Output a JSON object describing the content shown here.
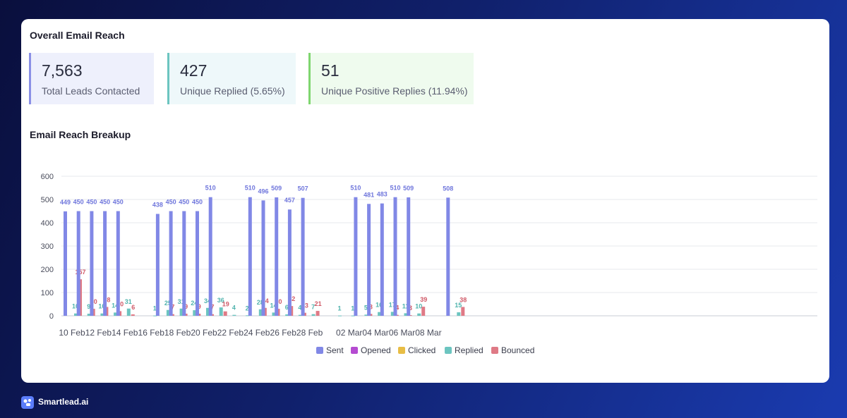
{
  "overview": {
    "title": "Overall Email Reach",
    "stats": [
      {
        "value": "7,563",
        "label": "Total Leads Contacted",
        "color": "#8a8fe6",
        "bg": "#eef0fc"
      },
      {
        "value": "427",
        "label": "Unique Replied (5.65%)",
        "color": "#6cc5c0",
        "bg": "#eef8fa"
      },
      {
        "value": "51",
        "label": "Unique Positive Replies (11.94%)",
        "color": "#7fd66f",
        "bg": "#effbee"
      }
    ]
  },
  "breakup": {
    "title": "Email Reach Breakup"
  },
  "chart_data": {
    "type": "bar",
    "ylim": [
      0,
      600
    ],
    "yticks": [
      0,
      100,
      200,
      300,
      400,
      500,
      600
    ],
    "grid": true,
    "legend_position": "bottom",
    "x_tick_labels": [
      "10 Feb",
      "12 Feb",
      "14 Feb",
      "16 Feb",
      "18 Feb",
      "20 Feb",
      "22 Feb",
      "24 Feb",
      "26 Feb",
      "28 Feb",
      "02 Mar",
      "04 Mar",
      "06 Mar",
      "08 Mar"
    ],
    "series": [
      {
        "name": "Sent",
        "color": "#8188e6"
      },
      {
        "name": "Opened",
        "color": "#b54bd1"
      },
      {
        "name": "Clicked",
        "color": "#e8bd45"
      },
      {
        "name": "Replied",
        "color": "#6cc5c0"
      },
      {
        "name": "Bounced",
        "color": "#df7a86"
      }
    ],
    "points": [
      {
        "date": "10 Feb",
        "sent": 449,
        "replied": 10,
        "bounced": 157
      },
      {
        "date": "11 Feb",
        "sent": 450,
        "replied": 9,
        "bounced": 30
      },
      {
        "date": "12 Feb",
        "sent": 450,
        "replied": 10,
        "bounced": 38
      },
      {
        "date": "13 Feb",
        "sent": 450,
        "replied": 14,
        "bounced": 20
      },
      {
        "date": "14 Feb",
        "sent": 450,
        "replied": 31,
        "bounced": 6
      },
      {
        "date": "16 Feb",
        "sent": 0,
        "replied": 1,
        "bounced": 0
      },
      {
        "date": "17 Feb",
        "sent": 438,
        "replied": 25,
        "bounced": 7
      },
      {
        "date": "18 Feb",
        "sent": 450,
        "replied": 31,
        "bounced": 9
      },
      {
        "date": "19 Feb",
        "sent": 450,
        "replied": 24,
        "bounced": 9
      },
      {
        "date": "20 Feb",
        "sent": 450,
        "replied": 34,
        "bounced": 7
      },
      {
        "date": "21 Feb",
        "sent": 510,
        "replied": 36,
        "bounced": 19
      },
      {
        "date": "22 Feb",
        "sent": 0,
        "replied": 4,
        "bounced": 0
      },
      {
        "date": "23 Feb",
        "sent": 0,
        "replied": 2,
        "bounced": 0
      },
      {
        "date": "24 Feb",
        "sent": 510,
        "replied": 28,
        "bounced": 34
      },
      {
        "date": "25 Feb",
        "sent": 496,
        "replied": 14,
        "bounced": 30
      },
      {
        "date": "26 Feb",
        "sent": 509,
        "replied": 6,
        "bounced": 42
      },
      {
        "date": "27 Feb",
        "sent": 457,
        "replied": 4,
        "bounced": 13
      },
      {
        "date": "28 Feb",
        "sent": 507,
        "replied": 7,
        "bounced": 21
      },
      {
        "date": "01 Mar",
        "sent": 0,
        "replied": 1,
        "bounced": 0
      },
      {
        "date": "02 Mar",
        "sent": 0,
        "replied": 1,
        "bounced": 0
      },
      {
        "date": "03 Mar",
        "sent": 510,
        "replied": 5,
        "bounced": 8
      },
      {
        "date": "04 Mar",
        "sent": 481,
        "replied": 16,
        "bounced": 0
      },
      {
        "date": "05 Mar",
        "sent": 483,
        "replied": 17,
        "bounced": 4
      },
      {
        "date": "06 Mar",
        "sent": 510,
        "replied": 11,
        "bounced": 3
      },
      {
        "date": "07 Mar",
        "sent": 509,
        "replied": 10,
        "bounced": 39
      },
      {
        "date": "10 Mar",
        "sent": 508,
        "replied": 15,
        "bounced": 38
      }
    ]
  },
  "footer": {
    "brand": "Smartlead.ai",
    "logo_icon": "smartlead-logo-icon"
  }
}
